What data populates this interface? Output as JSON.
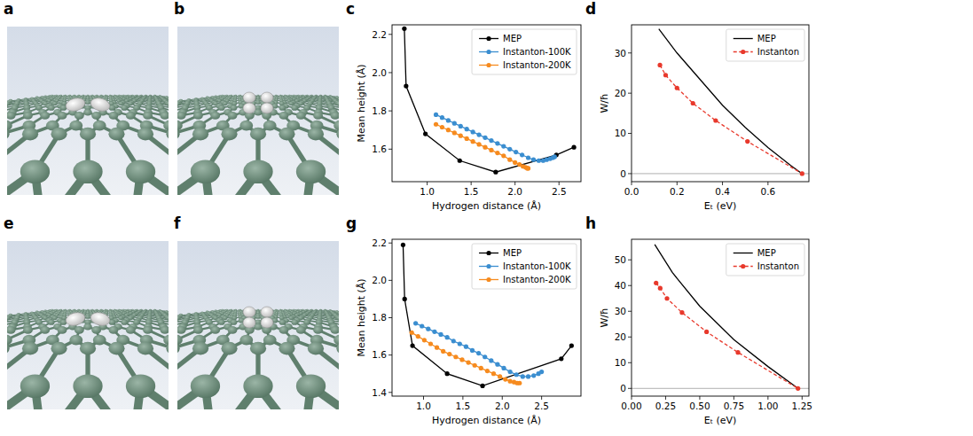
{
  "images": [
    {
      "panel": "a"
    },
    {
      "panel": "b"
    },
    {
      "panel": "e"
    },
    {
      "panel": "f"
    }
  ],
  "chart_data": [
    {
      "panel": "c",
      "type": "line",
      "xlabel": "Hydrogen distance (Å)",
      "ylabel": "Mean height (Å)",
      "xlim": [
        0.6,
        2.75
      ],
      "xticks": [
        {
          "value": 1,
          "label": "1.0"
        },
        1.5,
        {
          "value": 2,
          "label": "2.0"
        },
        2.5
      ],
      "ylim": [
        1.43,
        2.25
      ],
      "yticks": [
        1.6,
        1.8,
        {
          "value": 2,
          "label": "2.0"
        },
        2.2
      ],
      "grid": false,
      "legend": "upper right",
      "series": [
        {
          "name": "MEP",
          "color": "#000000",
          "marker": "circle",
          "line_style": "solid",
          "x": [
            0.74,
            0.76,
            0.98,
            1.37,
            1.78,
            2.47,
            2.67
          ],
          "values": [
            2.23,
            1.93,
            1.68,
            1.54,
            1.48,
            1.57,
            1.61
          ]
        },
        {
          "name": "Instanton-100K",
          "color": "#3b8ed0",
          "marker": "circle",
          "line_style": "solid",
          "x": [
            1.1,
            1.17,
            1.24,
            1.31,
            1.38,
            1.45,
            1.52,
            1.59,
            1.66,
            1.73,
            1.8,
            1.87,
            1.94,
            2.01,
            2.08,
            2.15,
            2.21,
            2.27,
            2.32,
            2.36,
            2.4,
            2.43,
            2.45
          ],
          "values": [
            1.78,
            1.765,
            1.75,
            1.735,
            1.72,
            1.705,
            1.69,
            1.675,
            1.66,
            1.645,
            1.63,
            1.615,
            1.6,
            1.585,
            1.57,
            1.555,
            1.545,
            1.54,
            1.54,
            1.545,
            1.55,
            1.555,
            1.56
          ]
        },
        {
          "name": "Instanton-200K",
          "color": "#f68b1f",
          "marker": "circle",
          "line_style": "solid",
          "x": [
            1.1,
            1.17,
            1.24,
            1.31,
            1.38,
            1.45,
            1.52,
            1.59,
            1.66,
            1.73,
            1.8,
            1.87,
            1.94,
            2.0,
            2.05,
            2.09,
            2.12,
            2.14,
            2.15
          ],
          "values": [
            1.73,
            1.715,
            1.7,
            1.685,
            1.67,
            1.655,
            1.64,
            1.625,
            1.61,
            1.595,
            1.58,
            1.565,
            1.545,
            1.53,
            1.52,
            1.51,
            1.505,
            1.5,
            1.5
          ]
        }
      ]
    },
    {
      "panel": "d",
      "type": "line",
      "xlabel": "Eₜ (eV)",
      "ylabel": "W/ħ",
      "xlim": [
        0,
        0.78
      ],
      "xticks": [
        {
          "value": 0,
          "label": "0.0"
        },
        0.2,
        0.4,
        0.6
      ],
      "ylim": [
        -2,
        37
      ],
      "yticks": [
        0,
        10,
        20,
        30
      ],
      "grid": false,
      "legend": "upper right",
      "series": [
        {
          "name": "MEP",
          "color": "#000000",
          "marker": "none",
          "line_style": "solid",
          "x": [
            0.12,
            0.2,
            0.3,
            0.4,
            0.5,
            0.6,
            0.7,
            0.75
          ],
          "values": [
            36,
            30,
            23.5,
            17,
            11.5,
            6.5,
            2,
            0
          ]
        },
        {
          "name": "Instanton",
          "color": "#e8392c",
          "marker": "circle",
          "line_style": "dashed",
          "x": [
            0.125,
            0.15,
            0.2,
            0.27,
            0.37,
            0.51,
            0.75
          ],
          "values": [
            27,
            24.5,
            21.3,
            17.5,
            13.2,
            8,
            0
          ]
        }
      ]
    },
    {
      "panel": "g",
      "type": "line",
      "xlabel": "Hydrogen distance (Å)",
      "ylabel": "Mean height (Å)",
      "xlim": [
        0.6,
        3.0
      ],
      "xticks": [
        {
          "value": 1,
          "label": "1.0"
        },
        1.5,
        {
          "value": 2,
          "label": "2.0"
        },
        2.5
      ],
      "ylim": [
        1.38,
        2.22
      ],
      "yticks": [
        1.4,
        1.6,
        1.8,
        {
          "value": 2,
          "label": "2.0"
        },
        2.2
      ],
      "grid": false,
      "legend": "upper right",
      "series": [
        {
          "name": "MEP",
          "color": "#000000",
          "marker": "circle",
          "line_style": "solid",
          "x": [
            0.74,
            0.76,
            0.86,
            1.3,
            1.75,
            2.75,
            2.88
          ],
          "values": [
            2.19,
            1.9,
            1.65,
            1.5,
            1.435,
            1.58,
            1.65
          ]
        },
        {
          "name": "Instanton-100K",
          "color": "#3b8ed0",
          "marker": "circle",
          "line_style": "solid",
          "x": [
            0.9,
            0.98,
            1.06,
            1.14,
            1.22,
            1.3,
            1.38,
            1.46,
            1.54,
            1.62,
            1.7,
            1.78,
            1.86,
            1.94,
            2.02,
            2.1,
            2.18,
            2.26,
            2.33,
            2.4,
            2.46,
            2.5
          ],
          "values": [
            1.77,
            1.755,
            1.74,
            1.725,
            1.71,
            1.695,
            1.675,
            1.66,
            1.645,
            1.625,
            1.61,
            1.59,
            1.57,
            1.55,
            1.53,
            1.51,
            1.495,
            1.485,
            1.485,
            1.49,
            1.5,
            1.51
          ]
        },
        {
          "name": "Instanton-200K",
          "color": "#f68b1f",
          "marker": "circle",
          "line_style": "solid",
          "x": [
            0.85,
            0.93,
            1.01,
            1.09,
            1.17,
            1.25,
            1.33,
            1.41,
            1.49,
            1.57,
            1.65,
            1.73,
            1.81,
            1.89,
            1.97,
            2.04,
            2.1,
            2.15,
            2.19,
            2.22
          ],
          "values": [
            1.72,
            1.7,
            1.68,
            1.66,
            1.64,
            1.62,
            1.605,
            1.59,
            1.575,
            1.56,
            1.545,
            1.53,
            1.515,
            1.5,
            1.485,
            1.47,
            1.46,
            1.455,
            1.45,
            1.45
          ]
        }
      ]
    },
    {
      "panel": "h",
      "type": "line",
      "xlabel": "Eₜ (eV)",
      "ylabel": "W/ħ",
      "xlim": [
        0,
        1.3
      ],
      "xticks": [
        {
          "value": 0,
          "label": "0.00"
        },
        0.25,
        {
          "value": 0.5,
          "label": "0.50"
        },
        0.75,
        {
          "value": 1,
          "label": "1.00"
        },
        1.25
      ],
      "ylim": [
        -3,
        58
      ],
      "yticks": [
        0,
        10,
        20,
        30,
        40,
        50
      ],
      "grid": false,
      "legend": "upper right",
      "series": [
        {
          "name": "MEP",
          "color": "#000000",
          "marker": "none",
          "line_style": "solid",
          "x": [
            0.17,
            0.3,
            0.5,
            0.75,
            1.0,
            1.22
          ],
          "values": [
            56,
            45,
            32,
            19,
            8.5,
            0
          ]
        },
        {
          "name": "Instanton",
          "color": "#e8392c",
          "marker": "circle",
          "line_style": "dashed",
          "x": [
            0.18,
            0.21,
            0.26,
            0.37,
            0.55,
            0.78,
            1.22
          ],
          "values": [
            41,
            39,
            35,
            29.5,
            22,
            14,
            0
          ]
        }
      ]
    }
  ]
}
